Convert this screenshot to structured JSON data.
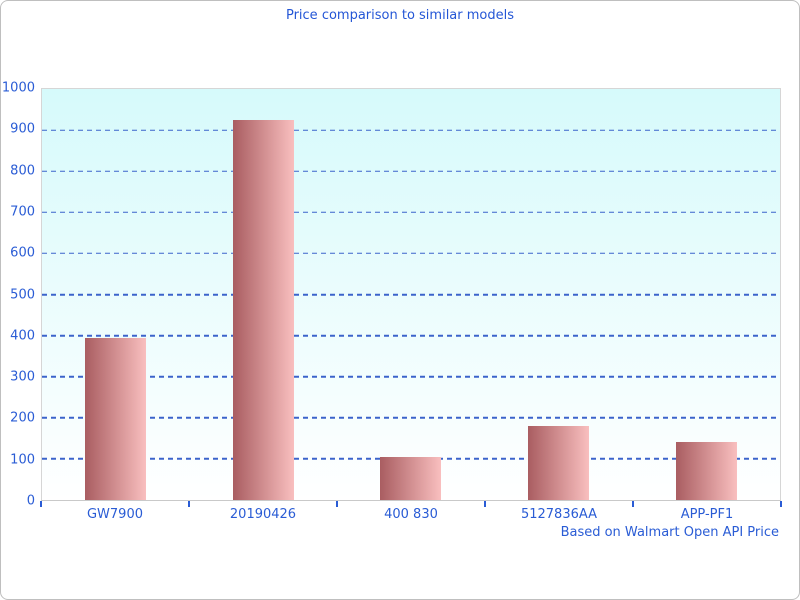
{
  "page": {
    "title": "Price comparison to similar models",
    "footnote": "Based on Walmart Open API Price"
  },
  "colors": {
    "title_text": "#2456d6",
    "axis_text": "#2a5cd5",
    "gridline": "#3b63cb",
    "plot_bg_top": "#d6fafb",
    "plot_bg_bottom": "#ffffff",
    "plot_border": "#d6d6d6",
    "baseline": "#c9c9c9",
    "bar_gradient_left": "#a95d61",
    "bar_gradient_right": "#f9bfbf",
    "frame_border": "#bfbfbf"
  },
  "chart_data": {
    "type": "bar",
    "title": "Price comparison to similar models",
    "categories": [
      "GW7900",
      "20190426",
      "400 830",
      "5127836AA",
      "APP-PF1"
    ],
    "values": [
      395,
      925,
      105,
      180,
      140
    ],
    "xlabel": "",
    "ylabel": "",
    "ylim": [
      0,
      1000
    ],
    "yticks": [
      0,
      100,
      200,
      300,
      400,
      500,
      600,
      700,
      800,
      900,
      1000
    ],
    "grid": "horizontal-dashed-blue",
    "legend": "none",
    "plot_background": "vertical gradient light-cyan to white",
    "bar_style": "horizontal gradient dark-rose to light-pink",
    "annotation": "Based on Walmart Open API Price"
  }
}
